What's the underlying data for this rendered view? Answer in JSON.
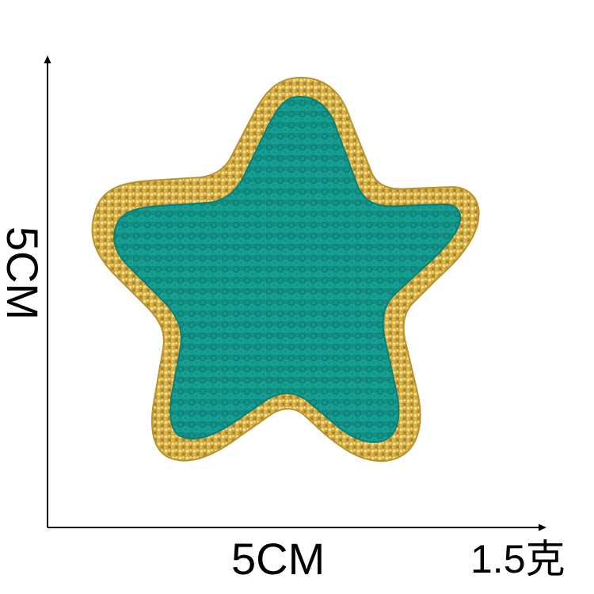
{
  "dimensions": {
    "width_label": "5CM",
    "height_label": "5CM"
  },
  "weight_label": "1.5克",
  "patch": {
    "subject": "star-patch",
    "fill_color": "#13958a",
    "border_color": "#d4b24a"
  }
}
